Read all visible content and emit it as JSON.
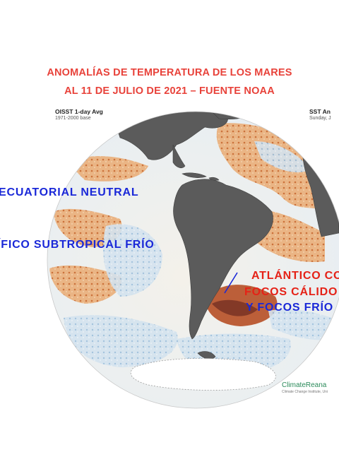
{
  "title_line1": "ANOMALÍAS DE TEMPERATURA DE LOS MARES",
  "title_line2": "AL 11 DE JULIO DE 2021 – FUENTE NOAA",
  "legend_left": {
    "dataset": "OISST 1-day Avg",
    "baseline": "1971-2000 base"
  },
  "legend_right": {
    "dataset": "SST An",
    "date": "Sunday, J"
  },
  "annotations": {
    "ecuatorial": "ECUATORIAL  NEUTRAL",
    "pacifico": "ÍFICO  SUBTROPICAL  FRÍO",
    "atlantico": "ATLÁNTICO CO",
    "focos_calidos": "FOCOS CÁLIDO",
    "focos_frios": "Y FOCOS FRÍO"
  },
  "logo": {
    "name": "ClimateReana",
    "tagline": "Climate Change Institute, Uni"
  },
  "colors": {
    "title": "#e8423a",
    "annotation_blue": "#1a28d8",
    "annotation_red": "#e52217",
    "land": "#5b5b5b",
    "warm_anomaly": "#d9843f",
    "cool_anomaly": "#8fb4d6"
  }
}
